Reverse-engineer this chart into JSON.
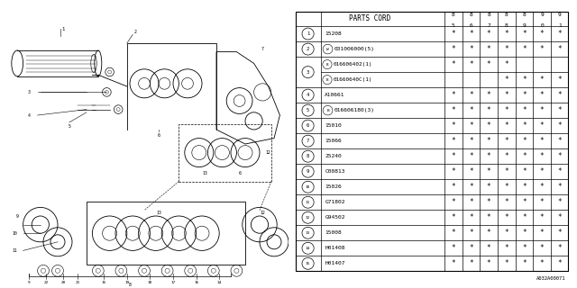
{
  "rows": [
    {
      "num": "1",
      "prefix": "",
      "code": "15208",
      "marks": [
        1,
        1,
        1,
        1,
        1,
        1,
        1
      ]
    },
    {
      "num": "2",
      "prefix": "W",
      "code": "031006000(5)",
      "marks": [
        1,
        1,
        1,
        1,
        1,
        1,
        1
      ]
    },
    {
      "num": "3",
      "prefix": "B",
      "code": "016606402(1)",
      "marks": [
        1,
        1,
        1,
        1,
        0,
        0,
        0
      ],
      "sub": true
    },
    {
      "num": "3",
      "prefix": "B",
      "code": "01660640C(1)",
      "marks": [
        0,
        0,
        0,
        1,
        1,
        1,
        1
      ],
      "sub": true
    },
    {
      "num": "4",
      "prefix": "",
      "code": "A10661",
      "marks": [
        1,
        1,
        1,
        1,
        1,
        1,
        1
      ]
    },
    {
      "num": "5",
      "prefix": "B",
      "code": "016606180(3)",
      "marks": [
        1,
        1,
        1,
        1,
        1,
        1,
        1
      ]
    },
    {
      "num": "6",
      "prefix": "",
      "code": "15010",
      "marks": [
        1,
        1,
        1,
        1,
        1,
        1,
        1
      ]
    },
    {
      "num": "7",
      "prefix": "",
      "code": "15066",
      "marks": [
        1,
        1,
        1,
        1,
        1,
        1,
        1
      ]
    },
    {
      "num": "8",
      "prefix": "",
      "code": "25240",
      "marks": [
        1,
        1,
        1,
        1,
        1,
        1,
        1
      ]
    },
    {
      "num": "9",
      "prefix": "",
      "code": "C00813",
      "marks": [
        1,
        1,
        1,
        1,
        1,
        1,
        1
      ]
    },
    {
      "num": "10",
      "prefix": "",
      "code": "15026",
      "marks": [
        1,
        1,
        1,
        1,
        1,
        1,
        1
      ]
    },
    {
      "num": "11",
      "prefix": "",
      "code": "G71802",
      "marks": [
        1,
        1,
        1,
        1,
        1,
        1,
        1
      ]
    },
    {
      "num": "12",
      "prefix": "",
      "code": "G94502",
      "marks": [
        1,
        1,
        1,
        1,
        1,
        1,
        1
      ]
    },
    {
      "num": "13",
      "prefix": "",
      "code": "15008",
      "marks": [
        1,
        1,
        1,
        1,
        1,
        1,
        1
      ]
    },
    {
      "num": "14",
      "prefix": "",
      "code": "H01408",
      "marks": [
        1,
        1,
        1,
        1,
        1,
        1,
        1
      ]
    },
    {
      "num": "15",
      "prefix": "",
      "code": "H01407",
      "marks": [
        1,
        1,
        1,
        1,
        1,
        1,
        1
      ]
    }
  ],
  "year_cols": [
    "85",
    "86",
    "87",
    "88",
    "89",
    "90",
    "91"
  ],
  "diagram_ref": "A032A00071",
  "bg": "#e8e8e8"
}
